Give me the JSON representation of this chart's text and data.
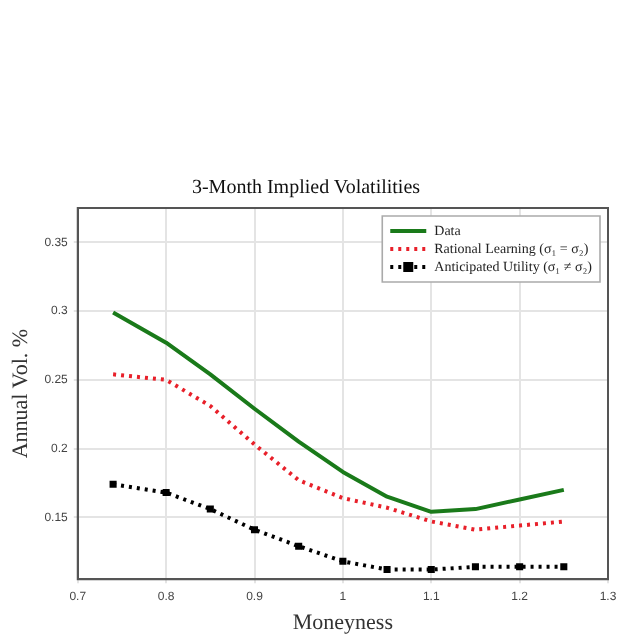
{
  "chart_data": {
    "type": "line",
    "title": "3-Month Implied Volatilities",
    "xlabel": "Moneyness",
    "ylabel": "Annual Vol. %",
    "x": [
      0.74,
      0.8,
      0.85,
      0.9,
      0.95,
      1.0,
      1.05,
      1.1,
      1.15,
      1.2,
      1.25
    ],
    "series": [
      {
        "name": "Data",
        "color": "#1a7a1a",
        "line_style": "solid",
        "marker": "none",
        "values": [
          0.299,
          0.277,
          0.254,
          0.229,
          0.205,
          0.183,
          0.165,
          0.154,
          0.156,
          0.163,
          0.17
        ]
      },
      {
        "name": "Rational Learning (σ₁ = σ₂)",
        "color": "#e8202a",
        "line_style": "dotted",
        "marker": "none",
        "values": [
          0.254,
          0.25,
          0.231,
          0.203,
          0.177,
          0.164,
          0.157,
          0.147,
          0.141,
          0.144,
          0.147
        ]
      },
      {
        "name": "Anticipated Utility (σ₁ ≠ σ₂)",
        "color": "#000000",
        "line_style": "dotted",
        "marker": "square",
        "values": [
          0.174,
          0.168,
          0.156,
          0.141,
          0.129,
          0.118,
          0.112,
          0.112,
          0.114,
          0.114,
          0.114
        ]
      }
    ],
    "xlim": [
      0.7,
      1.3
    ],
    "xticks": [
      0.7,
      0.8,
      0.9,
      1,
      1.1,
      1.2,
      1.3
    ],
    "ylim": [
      0.105,
      0.375
    ],
    "yticks": [
      0.15,
      0.2,
      0.25,
      0.3,
      0.35
    ],
    "grid": true,
    "legend": "top right"
  }
}
